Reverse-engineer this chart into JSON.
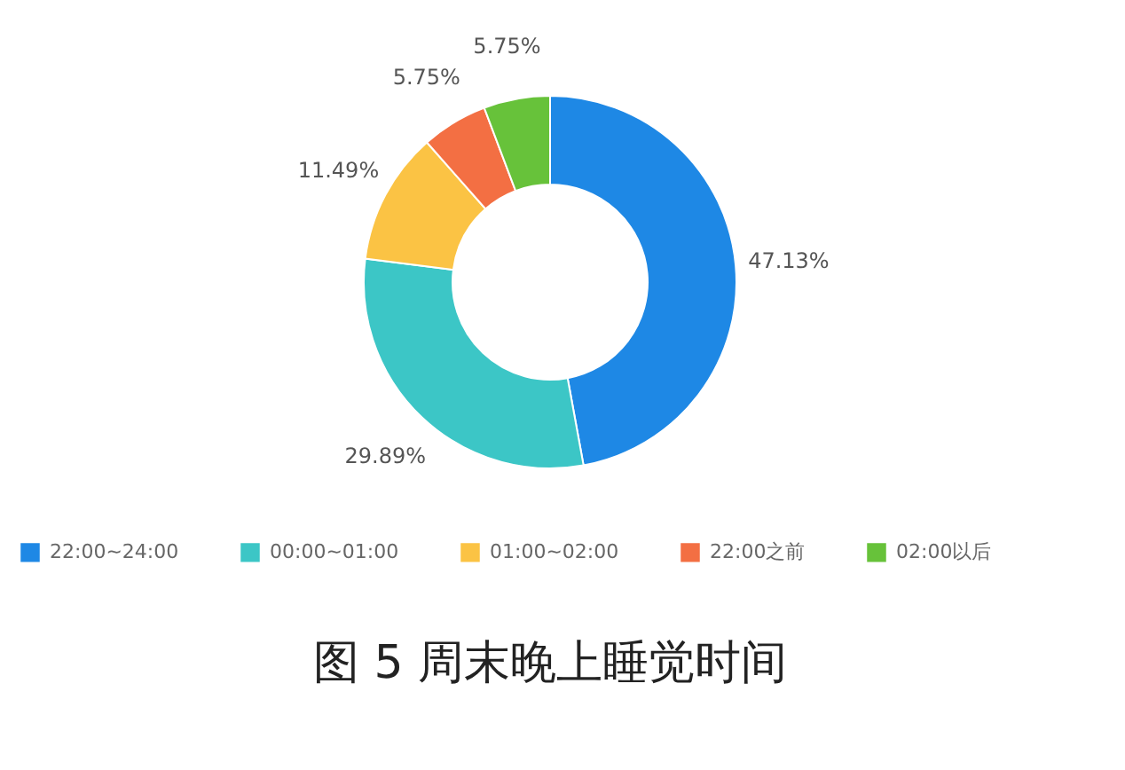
{
  "chart_data": {
    "type": "donut",
    "title": "图  5  周末晚上睡觉时间",
    "categories": [
      "22:00~24:00",
      "00:00~01:00",
      "01:00~02:00",
      "22:00之前",
      "02:00以后"
    ],
    "values": [
      47.13,
      29.89,
      11.49,
      5.75,
      5.75
    ],
    "value_labels": [
      "47.13%",
      "29.89%",
      "11.49%",
      "5.75%",
      "5.75%"
    ],
    "colors": [
      "#1e88e5",
      "#3cc6c6",
      "#fbc344",
      "#f36f43",
      "#67c23a"
    ],
    "legend": "bottom"
  }
}
